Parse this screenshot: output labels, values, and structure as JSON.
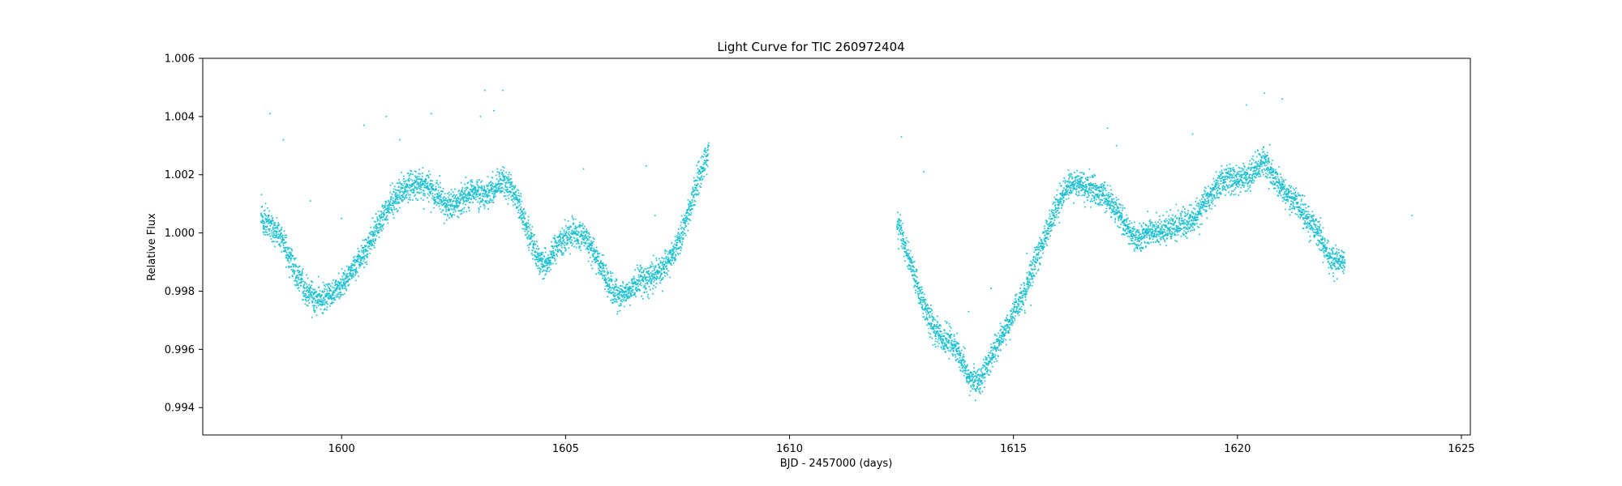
{
  "chart_data": {
    "type": "scatter",
    "title": "Light Curve for TIC 260972404",
    "xlabel": "BJD - 2457000 (days)",
    "ylabel": "Relative Flux",
    "xlim": [
      1596.9,
      1625.2
    ],
    "ylim": [
      0.99306,
      1.006
    ],
    "xticks": [
      1600,
      1605,
      1610,
      1615,
      1620,
      1625
    ],
    "yticks": [
      0.994,
      0.996,
      0.998,
      1.0,
      1.002,
      1.004,
      1.006
    ],
    "ytick_labels": [
      "0.994",
      "0.996",
      "0.998",
      "1.000",
      "1.002",
      "1.004",
      "1.006"
    ],
    "grid": false,
    "marker_color": "#17becf",
    "series": [
      {
        "x": [
          1598.2,
          1598.4,
          1598.6,
          1598.8,
          1599.0,
          1599.2,
          1599.4,
          1599.6,
          1599.8,
          1600.0,
          1600.2,
          1600.4,
          1600.6,
          1600.8,
          1601.0,
          1601.2,
          1601.4,
          1601.6,
          1601.8,
          1602.0,
          1602.2,
          1602.4,
          1602.6,
          1602.8,
          1603.0,
          1603.2,
          1603.4,
          1603.6,
          1603.8,
          1604.0,
          1604.2,
          1604.4,
          1604.6,
          1604.8,
          1605.0,
          1605.2,
          1605.4,
          1605.6,
          1605.8,
          1606.0,
          1606.2,
          1606.4,
          1606.6,
          1606.8,
          1607.0,
          1607.2,
          1607.4,
          1607.6,
          1607.8,
          1608.0,
          1608.2,
          1612.4,
          1612.6,
          1612.8,
          1613.0,
          1613.2,
          1613.4,
          1613.6,
          1613.8,
          1614.0,
          1614.2,
          1614.4,
          1614.6,
          1614.8,
          1615.0,
          1615.2,
          1615.4,
          1615.6,
          1615.8,
          1616.0,
          1616.2,
          1616.4,
          1616.6,
          1616.8,
          1617.0,
          1617.2,
          1617.4,
          1617.6,
          1617.8,
          1618.0,
          1618.2,
          1618.4,
          1618.6,
          1618.8,
          1619.0,
          1619.2,
          1619.4,
          1619.6,
          1619.8,
          1620.0,
          1620.2,
          1620.4,
          1620.6,
          1620.8,
          1621.0,
          1621.2,
          1621.4,
          1621.6,
          1621.8,
          1622.0,
          1622.2,
          1622.4
        ],
        "y": [
          1.0005,
          1.0003,
          1.0,
          0.9993,
          0.9986,
          0.998,
          0.9977,
          0.9978,
          0.9979,
          0.9982,
          0.9986,
          0.999,
          0.9996,
          1.0002,
          1.0008,
          1.0012,
          1.0015,
          1.0017,
          1.0016,
          1.0015,
          1.0012,
          1.0009,
          1.0011,
          1.0013,
          1.0014,
          1.0013,
          1.0015,
          1.0018,
          1.0015,
          1.0008,
          0.9999,
          0.999,
          0.999,
          0.9995,
          0.9998,
          1.0,
          0.9999,
          0.9994,
          0.9988,
          0.9981,
          0.9978,
          0.998,
          0.9982,
          0.9984,
          0.9986,
          0.9988,
          0.9993,
          1.0,
          1.001,
          1.002,
          1.0028,
          1.0004,
          0.9995,
          0.9985,
          0.9975,
          0.9968,
          0.9964,
          0.9962,
          0.9958,
          0.995,
          0.9948,
          0.9954,
          0.996,
          0.9966,
          0.9972,
          0.9978,
          0.9986,
          0.9995,
          1.0003,
          1.001,
          1.0016,
          1.0017,
          1.0016,
          1.0015,
          1.0013,
          1.001,
          1.0006,
          1.0,
          0.9997,
          1.0,
          1.0,
          1.0002,
          1.0002,
          1.0003,
          1.0004,
          1.0009,
          1.0013,
          1.0017,
          1.0019,
          1.0018,
          1.0018,
          1.0022,
          1.0025,
          1.002,
          1.0015,
          1.0012,
          1.0008,
          1.0004,
          1.0,
          0.9993,
          0.999,
          0.999
        ]
      }
    ],
    "outliers": {
      "x": [
        1598.4,
        1598.7,
        1599.3,
        1600.0,
        1600.5,
        1601.0,
        1601.3,
        1602.0,
        1603.1,
        1603.2,
        1603.4,
        1603.6,
        1605.4,
        1606.8,
        1607.0,
        1612.5,
        1613.0,
        1614.0,
        1614.5,
        1615.3,
        1617.1,
        1617.3,
        1619.0,
        1620.2,
        1620.6,
        1621.0,
        1623.9
      ],
      "y": [
        1.0041,
        1.0032,
        1.0011,
        1.0005,
        1.0037,
        1.004,
        1.0032,
        1.0041,
        1.004,
        1.0049,
        1.0042,
        1.0049,
        1.0022,
        1.0023,
        1.0006,
        1.0033,
        1.0021,
        0.9973,
        0.9981,
        0.9993,
        1.0036,
        1.003,
        1.0034,
        1.0044,
        1.0048,
        1.0046,
        1.0006
      ]
    }
  }
}
